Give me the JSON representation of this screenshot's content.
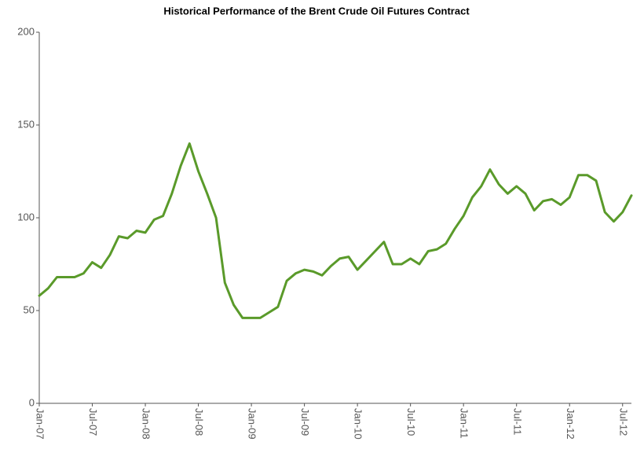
{
  "chart_data": {
    "type": "line",
    "title": "Historical Performance of the Brent Crude Oil Futures Contract",
    "categories": [
      "Jan-07",
      null,
      null,
      null,
      null,
      null,
      "Jul-07",
      null,
      null,
      null,
      null,
      null,
      "Jan-08",
      null,
      null,
      null,
      null,
      null,
      "Jul-08",
      null,
      null,
      null,
      null,
      null,
      "Jan-09",
      null,
      null,
      null,
      null,
      null,
      "Jul-09",
      null,
      null,
      null,
      null,
      null,
      "Jan-10",
      null,
      null,
      null,
      null,
      null,
      "Jul-10",
      null,
      null,
      null,
      null,
      null,
      "Jan-11",
      null,
      null,
      null,
      null,
      null,
      "Jul-11",
      null,
      null,
      null,
      null,
      null,
      "Jan-12",
      null,
      null,
      null,
      null,
      null,
      "Jul-12",
      null
    ],
    "series": [
      {
        "color": "#5a9a2a",
        "values": [
          58,
          62,
          68,
          68,
          68,
          70,
          76,
          73,
          80,
          90,
          89,
          93,
          92,
          99,
          101,
          113,
          128,
          140,
          125,
          113,
          100,
          65,
          53,
          46,
          46,
          46,
          49,
          52,
          66,
          70,
          72,
          71,
          69,
          74,
          78,
          79,
          72,
          77,
          82,
          87,
          75,
          75,
          78,
          75,
          82,
          83,
          86,
          94,
          101,
          111,
          117,
          126,
          118,
          113,
          117,
          113,
          104,
          109,
          110,
          107,
          111,
          123,
          123,
          120,
          103,
          98,
          103,
          112
        ]
      }
    ],
    "ylim": [
      0,
      200
    ],
    "yticks": [
      0,
      50,
      100,
      150,
      200
    ],
    "grid": false
  }
}
